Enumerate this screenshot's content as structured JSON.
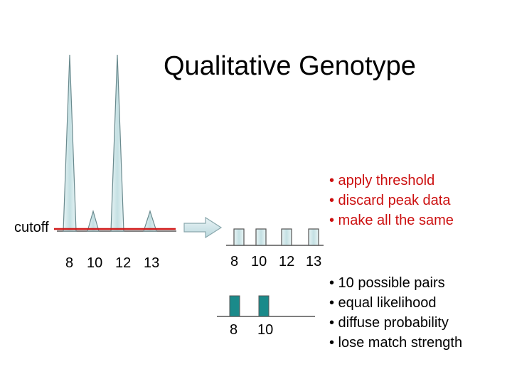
{
  "title": "Qualitative Genotype",
  "cutoff_label": "cutoff",
  "left_panel": {
    "allele_labels": [
      "8",
      "10",
      "12",
      "13"
    ]
  },
  "middle_panel": {
    "allele_labels": [
      "8",
      "10",
      "12",
      "13"
    ]
  },
  "genotype_panel": {
    "allele_labels": [
      "8",
      "10"
    ]
  },
  "threshold_bullets": [
    "• apply threshold",
    "• discard peak data",
    "• make all the same"
  ],
  "consequence_bullets": [
    "• 10 possible pairs",
    "• equal likelihood",
    "• diffuse probability",
    "• lose match strength"
  ],
  "colors": {
    "peak_fill": "#cfe6e8",
    "genotype_fill": "#1a8a8a",
    "cutoff_line": "#d01818",
    "bullet_red": "#cc1010"
  }
}
